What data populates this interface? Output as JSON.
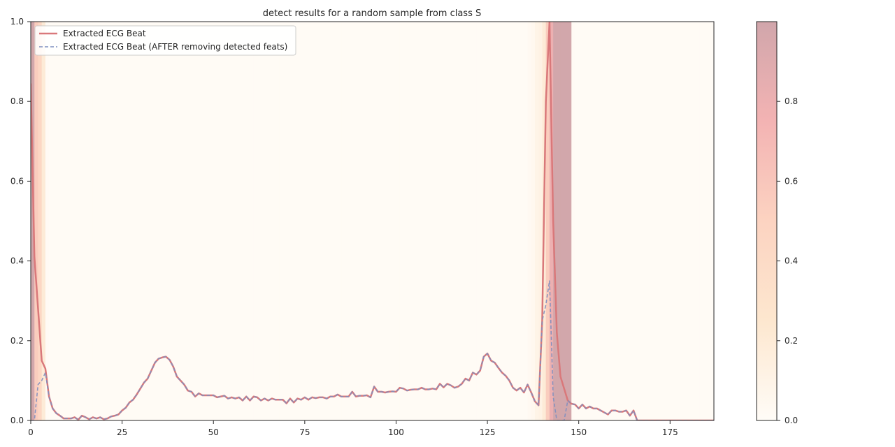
{
  "chart_data": {
    "type": "line",
    "title": "detect results for a random sample from class S",
    "xlabel": "",
    "ylabel": "",
    "xlim": [
      0,
      187
    ],
    "ylim": [
      0,
      1
    ],
    "x_ticks": [
      0,
      25,
      50,
      75,
      100,
      125,
      150,
      175
    ],
    "y_ticks": [
      0.0,
      0.2,
      0.4,
      0.6,
      0.8,
      1.0
    ],
    "y_tick_labels": [
      "0.0",
      "0.2",
      "0.4",
      "0.6",
      "0.8",
      "1.0"
    ],
    "grid": false,
    "legend_position": "top-left",
    "series": [
      {
        "name": "Extracted ECG Beat",
        "color": "#d9787a",
        "style": "solid",
        "values": [
          0.845,
          0.41,
          0.28,
          0.15,
          0.13,
          0.06,
          0.03,
          0.018,
          0.012,
          0.005,
          0.005,
          0.005,
          0.008,
          0.002,
          0.012,
          0.008,
          0.003,
          0.008,
          0.005,
          0.008,
          0.003,
          0.005,
          0.01,
          0.012,
          0.015,
          0.025,
          0.032,
          0.045,
          0.052,
          0.065,
          0.08,
          0.095,
          0.105,
          0.125,
          0.145,
          0.155,
          0.158,
          0.16,
          0.152,
          0.135,
          0.11,
          0.1,
          0.09,
          0.075,
          0.072,
          0.06,
          0.068,
          0.063,
          0.063,
          0.063,
          0.063,
          0.058,
          0.06,
          0.062,
          0.055,
          0.058,
          0.055,
          0.058,
          0.05,
          0.06,
          0.05,
          0.06,
          0.058,
          0.05,
          0.055,
          0.05,
          0.055,
          0.052,
          0.052,
          0.052,
          0.043,
          0.055,
          0.045,
          0.055,
          0.052,
          0.058,
          0.052,
          0.058,
          0.056,
          0.058,
          0.058,
          0.055,
          0.06,
          0.06,
          0.065,
          0.06,
          0.06,
          0.06,
          0.072,
          0.06,
          0.062,
          0.062,
          0.063,
          0.058,
          0.085,
          0.072,
          0.072,
          0.07,
          0.072,
          0.073,
          0.072,
          0.082,
          0.08,
          0.075,
          0.077,
          0.078,
          0.078,
          0.082,
          0.078,
          0.078,
          0.08,
          0.078,
          0.092,
          0.083,
          0.092,
          0.088,
          0.082,
          0.085,
          0.092,
          0.105,
          0.1,
          0.12,
          0.115,
          0.125,
          0.16,
          0.168,
          0.15,
          0.145,
          0.132,
          0.12,
          0.112,
          0.1,
          0.082,
          0.075,
          0.082,
          0.07,
          0.09,
          0.07,
          0.048,
          0.038,
          0.25,
          0.8,
          1.0,
          0.5,
          0.22,
          0.11,
          0.08,
          0.05,
          0.042,
          0.04,
          0.03,
          0.04,
          0.03,
          0.035,
          0.03,
          0.03,
          0.025,
          0.02,
          0.015,
          0.025,
          0.025,
          0.022,
          0.022,
          0.025,
          0.012,
          0.025,
          0,
          0,
          0,
          0,
          0,
          0,
          0,
          0,
          0,
          0,
          0,
          0,
          0,
          0,
          0,
          0,
          0,
          0,
          0,
          0,
          0,
          0
        ]
      },
      {
        "name": "Extracted ECG Beat (AFTER removing detected feats)",
        "color": "#7f8fbf",
        "style": "dashed",
        "values": [
          0.0,
          0.0,
          0.09,
          0.1,
          0.12,
          0.06,
          0.03,
          0.018,
          0.012,
          0.005,
          0.005,
          0.005,
          0.008,
          0.002,
          0.012,
          0.008,
          0.003,
          0.008,
          0.005,
          0.008,
          0.003,
          0.005,
          0.01,
          0.012,
          0.015,
          0.025,
          0.032,
          0.045,
          0.052,
          0.065,
          0.08,
          0.095,
          0.105,
          0.125,
          0.145,
          0.155,
          0.158,
          0.16,
          0.152,
          0.135,
          0.11,
          0.1,
          0.09,
          0.075,
          0.072,
          0.06,
          0.068,
          0.063,
          0.063,
          0.063,
          0.063,
          0.058,
          0.06,
          0.062,
          0.055,
          0.058,
          0.055,
          0.058,
          0.05,
          0.06,
          0.05,
          0.06,
          0.058,
          0.05,
          0.055,
          0.05,
          0.055,
          0.052,
          0.052,
          0.052,
          0.043,
          0.055,
          0.045,
          0.055,
          0.052,
          0.058,
          0.052,
          0.058,
          0.056,
          0.058,
          0.058,
          0.055,
          0.06,
          0.06,
          0.065,
          0.06,
          0.06,
          0.06,
          0.072,
          0.06,
          0.062,
          0.062,
          0.063,
          0.058,
          0.085,
          0.072,
          0.072,
          0.07,
          0.072,
          0.073,
          0.072,
          0.082,
          0.08,
          0.075,
          0.077,
          0.078,
          0.078,
          0.082,
          0.078,
          0.078,
          0.08,
          0.078,
          0.092,
          0.083,
          0.092,
          0.088,
          0.082,
          0.085,
          0.092,
          0.105,
          0.1,
          0.12,
          0.115,
          0.125,
          0.16,
          0.168,
          0.15,
          0.145,
          0.132,
          0.12,
          0.112,
          0.1,
          0.082,
          0.075,
          0.082,
          0.07,
          0.09,
          0.07,
          0.048,
          0.038,
          0.25,
          0.29,
          0.35,
          0.06,
          0.0,
          0.0,
          0.0,
          0.05,
          0.042,
          0.04,
          0.03,
          0.04,
          0.03,
          0.035,
          0.03,
          0.03,
          0.025,
          0.02,
          0.015,
          0.025,
          0.025,
          0.022,
          0.022,
          0.025,
          0.012,
          0.025,
          0,
          0,
          0,
          0,
          0,
          0,
          0,
          0,
          0,
          0,
          0,
          0,
          0,
          0,
          0,
          0,
          0,
          0,
          0,
          0,
          0,
          0
        ]
      }
    ],
    "importance_shading": {
      "colormap": [
        "#fffcf7",
        "#fde7cf",
        "#fcd3c1",
        "#f3b3b3",
        "#d1a6ab"
      ],
      "values": [
        0.99,
        0.55,
        0.45,
        0.2,
        0.02,
        0.01,
        0.01,
        0.01,
        0.01,
        0.01,
        0.01,
        0.01,
        0.01,
        0.01,
        0.01,
        0.01,
        0.01,
        0.01,
        0.01,
        0.01,
        0.01,
        0.01,
        0.01,
        0.01,
        0.01,
        0.01,
        0.01,
        0.01,
        0.01,
        0.01,
        0.01,
        0.01,
        0.01,
        0.01,
        0.01,
        0.01,
        0.01,
        0.01,
        0.01,
        0.01,
        0.01,
        0.01,
        0.01,
        0.01,
        0.01,
        0.01,
        0.01,
        0.01,
        0.01,
        0.01,
        0.01,
        0.01,
        0.01,
        0.01,
        0.01,
        0.01,
        0.01,
        0.01,
        0.01,
        0.01,
        0.01,
        0.01,
        0.01,
        0.01,
        0.01,
        0.01,
        0.01,
        0.01,
        0.01,
        0.01,
        0.01,
        0.01,
        0.01,
        0.01,
        0.01,
        0.01,
        0.01,
        0.01,
        0.01,
        0.01,
        0.01,
        0.01,
        0.01,
        0.01,
        0.01,
        0.01,
        0.01,
        0.01,
        0.01,
        0.01,
        0.01,
        0.01,
        0.01,
        0.01,
        0.01,
        0.01,
        0.01,
        0.01,
        0.01,
        0.01,
        0.01,
        0.01,
        0.01,
        0.01,
        0.01,
        0.01,
        0.01,
        0.01,
        0.01,
        0.01,
        0.01,
        0.01,
        0.01,
        0.01,
        0.01,
        0.01,
        0.01,
        0.01,
        0.01,
        0.01,
        0.01,
        0.01,
        0.01,
        0.01,
        0.01,
        0.01,
        0.01,
        0.01,
        0.01,
        0.01,
        0.01,
        0.01,
        0.01,
        0.01,
        0.01,
        0.01,
        0.03,
        0.05,
        0.1,
        0.12,
        0.2,
        0.55,
        0.8,
        0.99,
        0.99,
        0.99,
        0.99,
        0.99,
        0.02,
        0.01,
        0.01,
        0.01,
        0.01,
        0.01,
        0.01,
        0.01,
        0.01,
        0.01,
        0.01,
        0.01,
        0.01,
        0.01,
        0.01,
        0.01,
        0.01,
        0.01,
        0.01,
        0.01,
        0.01,
        0.01,
        0.01,
        0.01,
        0.01,
        0.01,
        0.01,
        0.01,
        0.01,
        0.01,
        0.01,
        0.01,
        0.01,
        0.01,
        0.01,
        0.01,
        0.01,
        0.01,
        0.01,
        0.01
      ]
    },
    "colorbar": {
      "range": [
        0,
        1
      ],
      "ticks": [
        0.0,
        0.2,
        0.4,
        0.6,
        0.8
      ],
      "tick_labels": [
        "0.0",
        "0.2",
        "0.4",
        "0.6",
        "0.8"
      ]
    }
  }
}
